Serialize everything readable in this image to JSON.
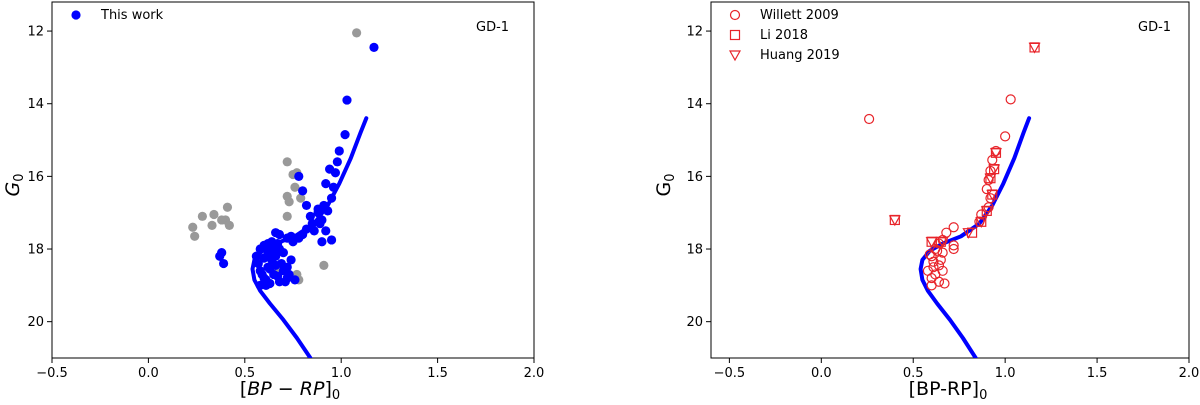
{
  "chart_data": [
    {
      "type": "scatter",
      "annotation": "GD-1",
      "xlim": [
        -0.5,
        2.0
      ],
      "ylim": [
        21.0,
        11.2
      ],
      "xticks": [
        "−0.5",
        "0.0",
        "0.5",
        "1.0",
        "1.5",
        "2.0"
      ],
      "xtick_values": [
        -0.5,
        0.0,
        0.5,
        1.0,
        1.5,
        2.0
      ],
      "yticks": [
        "12",
        "14",
        "16",
        "18",
        "20"
      ],
      "ytick_values": [
        12,
        14,
        16,
        18,
        20
      ],
      "legend_position": "upper-left",
      "series": [
        {
          "name": "This work",
          "color": "#0000ff",
          "marker": "filled-circle",
          "points": [
            [
              1.17,
              12.45
            ],
            [
              1.03,
              13.9
            ],
            [
              1.02,
              14.85
            ],
            [
              0.99,
              15.3
            ],
            [
              0.98,
              15.6
            ],
            [
              0.97,
              15.9
            ],
            [
              0.96,
              16.3
            ],
            [
              0.95,
              16.6
            ],
            [
              0.93,
              16.95
            ],
            [
              0.9,
              17.2
            ],
            [
              0.88,
              17.0
            ],
            [
              0.89,
              17.3
            ],
            [
              0.92,
              17.5
            ],
            [
              0.86,
              17.5
            ],
            [
              0.82,
              17.45
            ],
            [
              0.8,
              17.6
            ],
            [
              0.78,
              17.7
            ],
            [
              0.75,
              17.8
            ],
            [
              0.72,
              17.7
            ],
            [
              0.68,
              17.6
            ],
            [
              0.66,
              17.55
            ],
            [
              0.64,
              17.8
            ],
            [
              0.62,
              17.85
            ],
            [
              0.6,
              17.9
            ],
            [
              0.58,
              18.0
            ],
            [
              0.56,
              18.2
            ],
            [
              0.57,
              18.4
            ],
            [
              0.58,
              18.6
            ],
            [
              0.6,
              18.8
            ],
            [
              0.62,
              18.5
            ],
            [
              0.65,
              18.7
            ],
            [
              0.68,
              18.9
            ],
            [
              0.7,
              18.6
            ],
            [
              0.72,
              18.5
            ],
            [
              0.74,
              18.3
            ],
            [
              0.62,
              18.1
            ],
            [
              0.64,
              18.3
            ],
            [
              0.66,
              18.2
            ],
            [
              0.68,
              18.0
            ],
            [
              0.59,
              18.7
            ],
            [
              0.61,
              19.0
            ],
            [
              0.63,
              18.95
            ],
            [
              0.67,
              18.75
            ],
            [
              0.71,
              18.9
            ],
            [
              0.76,
              18.85
            ],
            [
              0.6,
              18.25
            ],
            [
              0.63,
              18.55
            ],
            [
              0.66,
              18.45
            ],
            [
              0.58,
              19.0
            ],
            [
              0.73,
              18.7
            ],
            [
              0.7,
              18.1
            ],
            [
              0.69,
              18.4
            ],
            [
              0.65,
              18.0
            ],
            [
              0.67,
              17.85
            ],
            [
              0.74,
              17.65
            ],
            [
              0.85,
              17.3
            ],
            [
              0.88,
              16.9
            ],
            [
              0.91,
              16.8
            ],
            [
              0.84,
              17.1
            ],
            [
              0.8,
              16.4
            ],
            [
              0.92,
              16.2
            ],
            [
              0.94,
              15.8
            ],
            [
              0.78,
              16.0
            ],
            [
              0.82,
              16.8
            ],
            [
              0.9,
              17.8
            ],
            [
              0.95,
              17.75
            ],
            [
              0.38,
              18.1
            ],
            [
              0.37,
              18.2
            ],
            [
              0.39,
              18.4
            ],
            [
              0.72,
              18.8
            ],
            [
              0.61,
              18.85
            ]
          ]
        },
        {
          "name": "",
          "color": "#999999",
          "marker": "filled-circle",
          "points": [
            [
              1.08,
              12.05
            ],
            [
              0.72,
              15.6
            ],
            [
              0.75,
              15.95
            ],
            [
              0.77,
              15.9
            ],
            [
              0.76,
              16.3
            ],
            [
              0.72,
              16.55
            ],
            [
              0.73,
              16.7
            ],
            [
              0.79,
              16.6
            ],
            [
              0.72,
              17.1
            ],
            [
              0.41,
              16.85
            ],
            [
              0.4,
              17.2
            ],
            [
              0.42,
              17.35
            ],
            [
              0.34,
              17.05
            ],
            [
              0.28,
              17.1
            ],
            [
              0.33,
              17.35
            ],
            [
              0.23,
              17.4
            ],
            [
              0.24,
              17.65
            ],
            [
              0.38,
              17.2
            ],
            [
              0.91,
              18.45
            ],
            [
              0.77,
              18.7
            ],
            [
              0.78,
              18.85
            ],
            [
              0.76,
              18.8
            ],
            [
              0.67,
              18.55
            ]
          ]
        }
      ],
      "isochrone": [
        [
          1.13,
          14.4
        ],
        [
          1.1,
          14.8
        ],
        [
          1.05,
          15.5
        ],
        [
          0.99,
          16.2
        ],
        [
          0.93,
          16.8
        ],
        [
          0.86,
          17.3
        ],
        [
          0.76,
          17.65
        ],
        [
          0.66,
          17.85
        ],
        [
          0.59,
          18.05
        ],
        [
          0.55,
          18.3
        ],
        [
          0.54,
          18.55
        ],
        [
          0.55,
          18.85
        ],
        [
          0.58,
          19.15
        ],
        [
          0.63,
          19.5
        ],
        [
          0.7,
          19.95
        ],
        [
          0.77,
          20.45
        ],
        [
          0.84,
          21.0
        ]
      ]
    },
    {
      "type": "scatter",
      "annotation": "GD-1",
      "xlim": [
        -0.6,
        2.0
      ],
      "ylim": [
        21.0,
        11.2
      ],
      "xticks": [
        "−0.5",
        "0.0",
        "0.5",
        "1.0",
        "1.5",
        "2.0"
      ],
      "xtick_values": [
        -0.5,
        0.0,
        0.5,
        1.0,
        1.5,
        2.0
      ],
      "yticks": [
        "12",
        "14",
        "16",
        "18",
        "20"
      ],
      "ytick_values": [
        12,
        14,
        16,
        18,
        20
      ],
      "legend_position": "upper-left",
      "series": [
        {
          "name": "Willett 2009",
          "color": "#e8242a",
          "marker": "open-circle",
          "points": [
            [
              0.26,
              14.42
            ],
            [
              1.03,
              13.88
            ],
            [
              1.0,
              14.9
            ],
            [
              0.95,
              15.3
            ],
            [
              0.93,
              15.55
            ],
            [
              0.92,
              15.85
            ],
            [
              0.91,
              16.1
            ],
            [
              0.9,
              16.35
            ],
            [
              0.92,
              16.6
            ],
            [
              0.91,
              16.85
            ],
            [
              0.87,
              17.05
            ],
            [
              0.86,
              17.25
            ],
            [
              0.72,
              17.4
            ],
            [
              0.68,
              17.55
            ],
            [
              0.66,
              17.75
            ],
            [
              0.64,
              17.85
            ],
            [
              0.62,
              18.0
            ],
            [
              0.6,
              18.2
            ],
            [
              0.61,
              18.5
            ],
            [
              0.62,
              18.7
            ],
            [
              0.6,
              19.0
            ],
            [
              0.64,
              18.9
            ],
            [
              0.66,
              18.6
            ],
            [
              0.65,
              18.3
            ],
            [
              0.63,
              18.05
            ],
            [
              0.72,
              17.9
            ],
            [
              0.72,
              18.0
            ],
            [
              0.67,
              18.95
            ],
            [
              0.6,
              18.8
            ],
            [
              0.58,
              18.6
            ],
            [
              0.61,
              18.35
            ],
            [
              0.59,
              18.15
            ],
            [
              0.66,
              18.1
            ],
            [
              0.64,
              18.45
            ]
          ]
        },
        {
          "name": "Li 2018",
          "color": "#e8242a",
          "marker": "open-square",
          "points": [
            [
              1.16,
              12.45
            ],
            [
              0.4,
              17.2
            ],
            [
              0.95,
              15.35
            ],
            [
              0.92,
              16.05
            ],
            [
              0.93,
              16.5
            ],
            [
              0.9,
              16.95
            ],
            [
              0.87,
              17.25
            ],
            [
              0.82,
              17.55
            ],
            [
              0.65,
              17.8
            ],
            [
              0.6,
              17.8
            ],
            [
              0.94,
              15.8
            ]
          ]
        },
        {
          "name": "Huang 2019",
          "color": "#e8242a",
          "marker": "open-triangle-down",
          "points": [
            [
              1.16,
              12.45
            ],
            [
              0.4,
              17.2
            ],
            [
              0.95,
              15.35
            ],
            [
              0.92,
              16.05
            ],
            [
              0.93,
              16.5
            ],
            [
              0.9,
              16.95
            ],
            [
              0.87,
              17.25
            ],
            [
              0.8,
              17.55
            ],
            [
              0.66,
              17.8
            ],
            [
              0.6,
              17.8
            ],
            [
              0.94,
              15.8
            ]
          ]
        }
      ],
      "isochrone": [
        [
          1.13,
          14.4
        ],
        [
          1.1,
          14.8
        ],
        [
          1.05,
          15.5
        ],
        [
          0.99,
          16.2
        ],
        [
          0.93,
          16.8
        ],
        [
          0.86,
          17.3
        ],
        [
          0.76,
          17.65
        ],
        [
          0.66,
          17.85
        ],
        [
          0.59,
          18.05
        ],
        [
          0.55,
          18.3
        ],
        [
          0.54,
          18.55
        ],
        [
          0.55,
          18.85
        ],
        [
          0.58,
          19.15
        ],
        [
          0.63,
          19.5
        ],
        [
          0.7,
          19.95
        ],
        [
          0.77,
          20.45
        ],
        [
          0.84,
          21.0
        ]
      ]
    }
  ]
}
